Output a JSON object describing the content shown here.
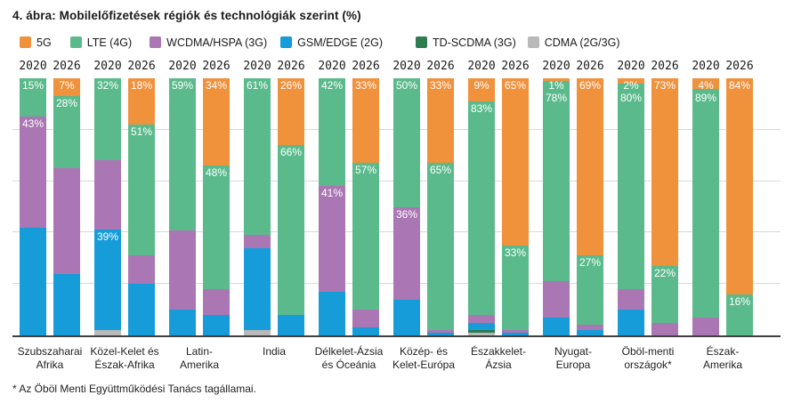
{
  "title": "4. ábra: Mobilelőfizetések régiók és technológiák szerint (%)",
  "footnote": "* Az Öböl Menti Együttműködési Tanács tagállamai.",
  "colors": {
    "background": "#FFFFFF",
    "axis": "#404040",
    "gridline": "#D9D9D9",
    "text": "#1A1A1A",
    "bar_value_text": "#FFFFFF"
  },
  "legend": [
    {
      "key": "5g",
      "label": "5G",
      "color": "#F0913C"
    },
    {
      "key": "lte",
      "label": "LTE (4G)",
      "color": "#5BBA8C"
    },
    {
      "key": "wcdma",
      "label": "WCDMA/HSPA (3G)",
      "color": "#AA77B4"
    },
    {
      "key": "gsm",
      "label": "GSM/EDGE (2G)",
      "color": "#169CD8"
    },
    {
      "key": "td",
      "label": "TD-SCDMA (3G)",
      "color": "#2E7D50"
    },
    {
      "key": "cdma",
      "label": "CDMA (2G/3G)",
      "color": "#B9B9B9"
    }
  ],
  "chart_data": {
    "type": "bar",
    "stacked": true,
    "unit": "%",
    "ylim": [
      0,
      100
    ],
    "gridlines": [
      20,
      40,
      60,
      80
    ],
    "grid": true,
    "legend_position": "top",
    "years": [
      "2020",
      "2026"
    ],
    "segment_order": "top-to-bottom",
    "regions": [
      {
        "name": [
          "Szubszaharai",
          "Afrika"
        ],
        "bars": [
          {
            "year": "2020",
            "segments": [
              {
                "tech": "lte",
                "value": 15,
                "label": "15%"
              },
              {
                "tech": "wcdma",
                "value": 43,
                "label": "43%"
              },
              {
                "tech": "gsm",
                "value": 42
              }
            ]
          },
          {
            "year": "2026",
            "segments": [
              {
                "tech": "5g",
                "value": 7,
                "label": "7%"
              },
              {
                "tech": "lte",
                "value": 28,
                "label": "28%"
              },
              {
                "tech": "wcdma",
                "value": 41
              },
              {
                "tech": "gsm",
                "value": 24
              }
            ]
          }
        ]
      },
      {
        "name": [
          "Közel-Kelet és",
          "Észak-Afrika"
        ],
        "bars": [
          {
            "year": "2020",
            "segments": [
              {
                "tech": "lte",
                "value": 32,
                "label": "32%"
              },
              {
                "tech": "wcdma",
                "value": 27
              },
              {
                "tech": "gsm",
                "value": 39,
                "label": "39%"
              },
              {
                "tech": "cdma",
                "value": 2
              }
            ]
          },
          {
            "year": "2026",
            "segments": [
              {
                "tech": "5g",
                "value": 18,
                "label": "18%"
              },
              {
                "tech": "lte",
                "value": 51,
                "label": "51%"
              },
              {
                "tech": "wcdma",
                "value": 11
              },
              {
                "tech": "gsm",
                "value": 20
              }
            ]
          }
        ]
      },
      {
        "name": [
          "Latin-",
          "Amerika"
        ],
        "bars": [
          {
            "year": "2020",
            "segments": [
              {
                "tech": "lte",
                "value": 59,
                "label": "59%"
              },
              {
                "tech": "wcdma",
                "value": 31
              },
              {
                "tech": "gsm",
                "value": 10
              }
            ]
          },
          {
            "year": "2026",
            "segments": [
              {
                "tech": "5g",
                "value": 34,
                "label": "34%"
              },
              {
                "tech": "lte",
                "value": 48,
                "label": "48%"
              },
              {
                "tech": "wcdma",
                "value": 10
              },
              {
                "tech": "gsm",
                "value": 8
              }
            ]
          }
        ]
      },
      {
        "name": [
          "India"
        ],
        "bars": [
          {
            "year": "2020",
            "segments": [
              {
                "tech": "lte",
                "value": 61,
                "label": "61%"
              },
              {
                "tech": "wcdma",
                "value": 5
              },
              {
                "tech": "gsm",
                "value": 32
              },
              {
                "tech": "cdma",
                "value": 2
              }
            ]
          },
          {
            "year": "2026",
            "segments": [
              {
                "tech": "5g",
                "value": 26,
                "label": "26%"
              },
              {
                "tech": "lte",
                "value": 66,
                "label": "66%"
              },
              {
                "tech": "gsm",
                "value": 8
              }
            ]
          }
        ]
      },
      {
        "name": [
          "Délkelet-Ázsia",
          "és Óceánia"
        ],
        "bars": [
          {
            "year": "2020",
            "segments": [
              {
                "tech": "lte",
                "value": 42,
                "label": "42%"
              },
              {
                "tech": "wcdma",
                "value": 41,
                "label": "41%"
              },
              {
                "tech": "gsm",
                "value": 17
              }
            ]
          },
          {
            "year": "2026",
            "segments": [
              {
                "tech": "5g",
                "value": 33,
                "label": "33%"
              },
              {
                "tech": "lte",
                "value": 57,
                "label": "57%"
              },
              {
                "tech": "wcdma",
                "value": 7
              },
              {
                "tech": "gsm",
                "value": 3
              }
            ]
          }
        ]
      },
      {
        "name": [
          "Közép- és",
          "Kelet-Európa"
        ],
        "bars": [
          {
            "year": "2020",
            "segments": [
              {
                "tech": "lte",
                "value": 50,
                "label": "50%"
              },
              {
                "tech": "wcdma",
                "value": 36,
                "label": "36%"
              },
              {
                "tech": "gsm",
                "value": 14
              }
            ]
          },
          {
            "year": "2026",
            "segments": [
              {
                "tech": "5g",
                "value": 33,
                "label": "33%"
              },
              {
                "tech": "lte",
                "value": 65,
                "label": "65%"
              },
              {
                "tech": "wcdma",
                "value": 1
              },
              {
                "tech": "gsm",
                "value": 1
              }
            ]
          }
        ]
      },
      {
        "name": [
          "Északkelet-",
          "Ázsia"
        ],
        "bars": [
          {
            "year": "2020",
            "segments": [
              {
                "tech": "5g",
                "value": 9,
                "label": "9%"
              },
              {
                "tech": "lte",
                "value": 83,
                "label": "83%"
              },
              {
                "tech": "wcdma",
                "value": 3
              },
              {
                "tech": "gsm",
                "value": 3
              },
              {
                "tech": "td",
                "value": 1
              },
              {
                "tech": "cdma",
                "value": 1
              }
            ]
          },
          {
            "year": "2026",
            "segments": [
              {
                "tech": "5g",
                "value": 65,
                "label": "65%"
              },
              {
                "tech": "lte",
                "value": 33,
                "label": "33%"
              },
              {
                "tech": "wcdma",
                "value": 1
              },
              {
                "tech": "gsm",
                "value": 1
              }
            ]
          }
        ]
      },
      {
        "name": [
          "Nyugat-",
          "Europa"
        ],
        "bars": [
          {
            "year": "2020",
            "segments": [
              {
                "tech": "5g",
                "value": 1,
                "label": "1%"
              },
              {
                "tech": "lte",
                "value": 78,
                "label": "78%"
              },
              {
                "tech": "wcdma",
                "value": 14
              },
              {
                "tech": "gsm",
                "value": 7
              }
            ]
          },
          {
            "year": "2026",
            "segments": [
              {
                "tech": "5g",
                "value": 69,
                "label": "69%"
              },
              {
                "tech": "lte",
                "value": 27,
                "label": "27%"
              },
              {
                "tech": "wcdma",
                "value": 2
              },
              {
                "tech": "gsm",
                "value": 2
              }
            ]
          }
        ]
      },
      {
        "name": [
          "Öböl-menti",
          "országok*"
        ],
        "bars": [
          {
            "year": "2020",
            "segments": [
              {
                "tech": "5g",
                "value": 2,
                "label": "2%"
              },
              {
                "tech": "lte",
                "value": 80,
                "label": "80%"
              },
              {
                "tech": "wcdma",
                "value": 8
              },
              {
                "tech": "gsm",
                "value": 10
              }
            ]
          },
          {
            "year": "2026",
            "segments": [
              {
                "tech": "5g",
                "value": 73,
                "label": "73%"
              },
              {
                "tech": "lte",
                "value": 22,
                "label": "22%"
              },
              {
                "tech": "wcdma",
                "value": 5
              }
            ]
          }
        ]
      },
      {
        "name": [
          "Észak-",
          "Amerika"
        ],
        "bars": [
          {
            "year": "2020",
            "segments": [
              {
                "tech": "5g",
                "value": 4,
                "label": "4%"
              },
              {
                "tech": "lte",
                "value": 89,
                "label": "89%"
              },
              {
                "tech": "wcdma",
                "value": 7
              }
            ]
          },
          {
            "year": "2026",
            "segments": [
              {
                "tech": "5g",
                "value": 84,
                "label": "84%"
              },
              {
                "tech": "lte",
                "value": 16,
                "label": "16%"
              }
            ]
          }
        ]
      }
    ]
  }
}
